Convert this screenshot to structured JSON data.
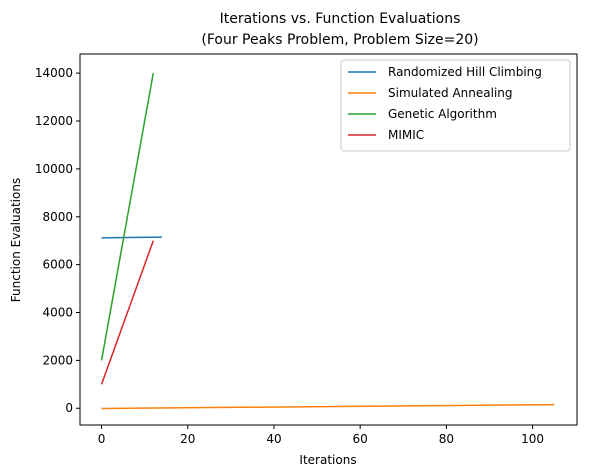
{
  "chart_data": {
    "type": "line",
    "title_line1": "Iterations vs. Function Evaluations",
    "title_line2": "(Four Peaks Problem, Problem Size=20)",
    "xlabel": "Iterations",
    "ylabel": "Function Evaluations",
    "xlim": [
      -5,
      110.3
    ],
    "ylim": [
      -700,
      14800
    ],
    "xticks": [
      0,
      20,
      40,
      60,
      80,
      100
    ],
    "yticks": [
      0,
      2000,
      4000,
      6000,
      8000,
      10000,
      12000,
      14000
    ],
    "grid": false,
    "legend_position": "top-right",
    "series": [
      {
        "name": "Randomized Hill Climbing",
        "color": "#1f77b4",
        "x": [
          0,
          14
        ],
        "y": [
          7120,
          7150
        ]
      },
      {
        "name": "Simulated Annealing",
        "color": "#ff7f0e",
        "x": [
          0,
          105
        ],
        "y": [
          -10,
          150
        ]
      },
      {
        "name": "Genetic Algorithm",
        "color": "#2ca02c",
        "x": [
          0,
          12
        ],
        "y": [
          2000,
          14000
        ]
      },
      {
        "name": "MIMIC",
        "color": "#d62728",
        "x": [
          0,
          12
        ],
        "y": [
          1000,
          7000
        ]
      }
    ]
  }
}
